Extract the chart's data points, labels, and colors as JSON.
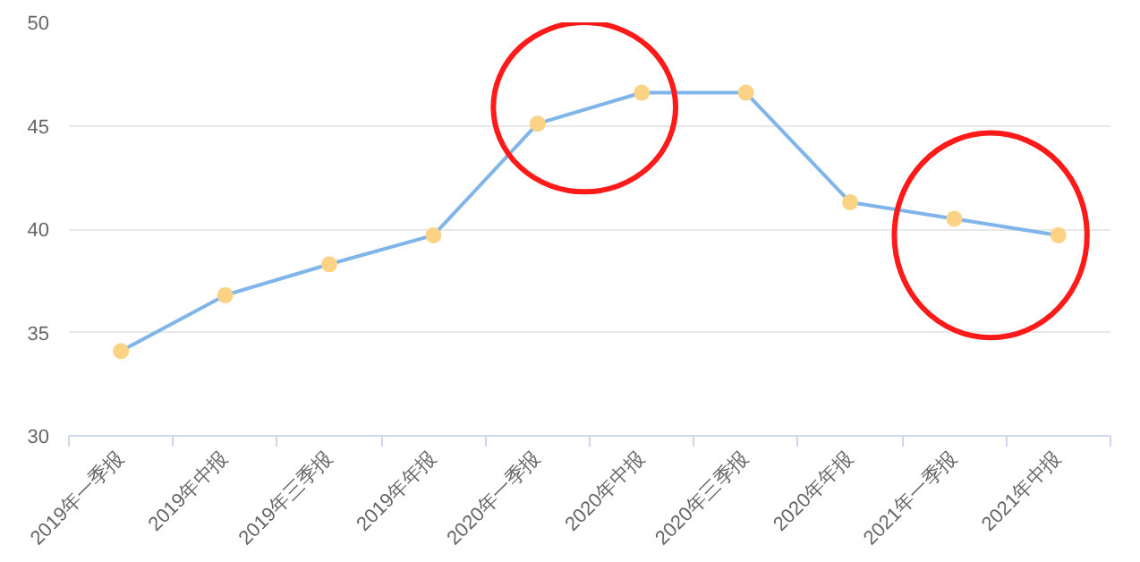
{
  "chart_data": {
    "type": "line",
    "categories": [
      "2019年一季报",
      "2019年中报",
      "2019年三季报",
      "2019年年报",
      "2020年一季报",
      "2020年中报",
      "2020年三季报",
      "2020年年报",
      "2021年一季报",
      "2021年中报"
    ],
    "series": [
      {
        "color": "#7fb5e9",
        "colors": [
          "#fcd285",
          "#fcd285",
          "#fcd285",
          "#fcd285",
          "#fcd285",
          "#fcd285",
          "#fcd285",
          "#fcd285",
          "#fcd285",
          "#fcd285"
        ],
        "values": [
          34.1,
          36.8,
          38.3,
          39.7,
          45.1,
          46.6,
          46.6,
          41.3,
          40.5,
          39.7
        ]
      }
    ],
    "marker": "circle",
    "ylim": [
      30,
      50
    ],
    "yticks": [
      30,
      35,
      40,
      45,
      50
    ],
    "grid": "y"
  }
}
